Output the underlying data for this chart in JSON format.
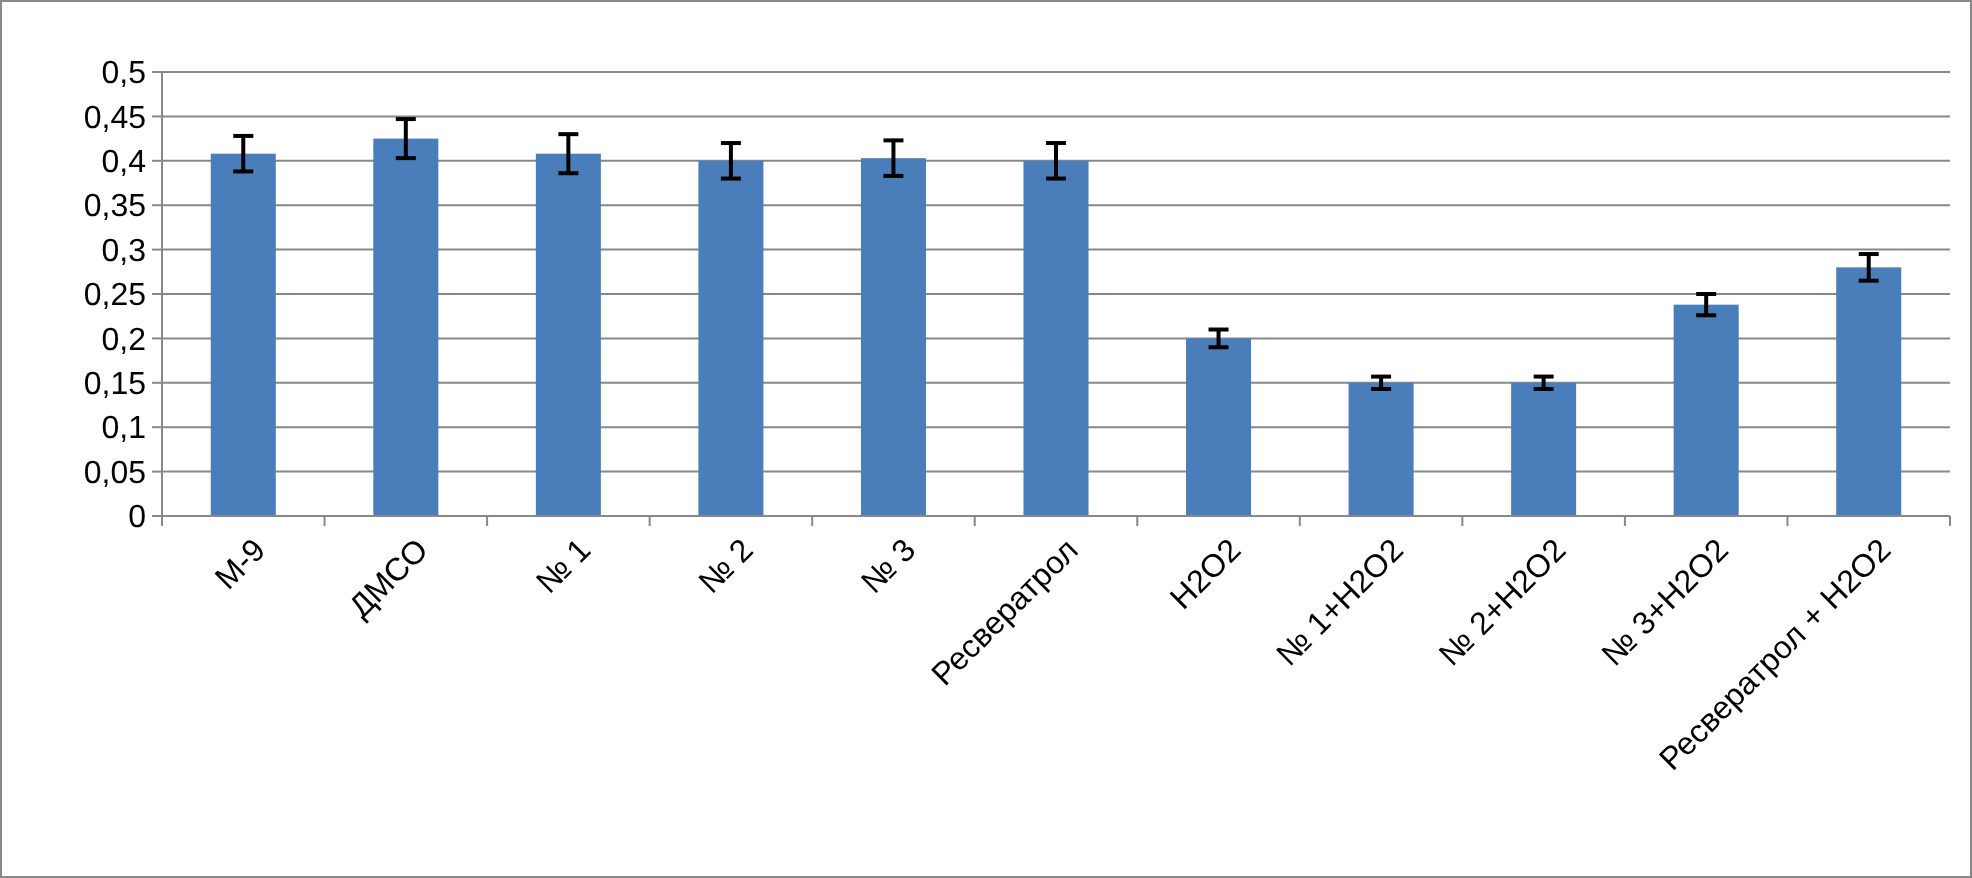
{
  "chart_data": {
    "type": "bar",
    "categories": [
      "М-9",
      "ДМСО",
      "№ 1",
      "№ 2",
      "№ 3",
      "Ресвератрол",
      "H2O2",
      "№ 1+H2O2",
      "№ 2+H2O2",
      "№ 3+H2O2",
      "Ресвератрол + H2O2"
    ],
    "values": [
      0.408,
      0.425,
      0.408,
      0.4,
      0.403,
      0.4,
      0.2,
      0.15,
      0.15,
      0.238,
      0.28
    ],
    "errors": [
      0.02,
      0.022,
      0.022,
      0.02,
      0.02,
      0.02,
      0.01,
      0.007,
      0.007,
      0.012,
      0.015
    ],
    "color": "#4a7ebb",
    "ylim": [
      0,
      0.5
    ],
    "yticks": [
      0,
      {
        "value": 0.05,
        "label": "0,05"
      },
      {
        "value": 0.1,
        "label": "0,1"
      },
      {
        "value": 0.15,
        "label": "0,15"
      },
      {
        "value": 0.2,
        "label": "0,2"
      },
      {
        "value": 0.25,
        "label": "0,25"
      },
      {
        "value": 0.3,
        "label": "0,3"
      },
      {
        "value": 0.35,
        "label": "0,35"
      },
      {
        "value": 0.4,
        "label": "0,4"
      },
      {
        "value": 0.45,
        "label": "0,45"
      },
      {
        "value": 0.5,
        "label": "0,5"
      }
    ],
    "grid": "y"
  }
}
